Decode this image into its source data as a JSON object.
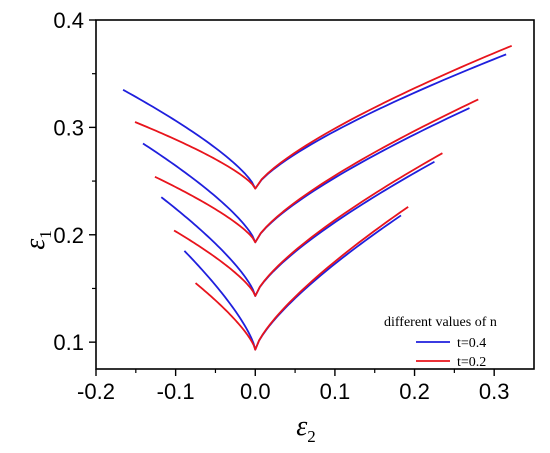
{
  "chart_data": {
    "type": "line",
    "xlabel": {
      "symbol": "ε",
      "subscript": "2"
    },
    "ylabel": {
      "symbol": "ε",
      "subscript": "1"
    },
    "xlim": [
      -0.2,
      0.35
    ],
    "ylim": [
      0.075,
      0.4
    ],
    "xticks": [
      -0.2,
      -0.1,
      0.0,
      0.1,
      0.2,
      0.3
    ],
    "xtick_labels": [
      "-0.2",
      "-0.1",
      "0.0",
      "0.1",
      "0.2",
      "0.3"
    ],
    "yticks": [
      0.1,
      0.2,
      0.3,
      0.4
    ],
    "ytick_labels": [
      "0.1",
      "0.2",
      "0.3",
      "0.4"
    ],
    "legend": {
      "title": "different values of n",
      "placement": "bottom-right",
      "entries": [
        {
          "label": "t=0.4",
          "color": "#1f1fdd"
        },
        {
          "label": "t=0.2",
          "color": "#e8141c"
        }
      ]
    },
    "series": [
      {
        "group": 1,
        "legend_entry": 0,
        "color": "#1f1fdd",
        "vertex": [
          0.0,
          0.243
        ],
        "left": [
          -0.166,
          0.335
        ],
        "right": [
          0.315,
          0.368
        ]
      },
      {
        "group": 1,
        "legend_entry": 1,
        "color": "#e8141c",
        "vertex": [
          0.0,
          0.243
        ],
        "left": [
          -0.151,
          0.305
        ],
        "right": [
          0.322,
          0.376
        ]
      },
      {
        "group": 2,
        "legend_entry": 0,
        "color": "#1f1fdd",
        "vertex": [
          0.0,
          0.193
        ],
        "left": [
          -0.141,
          0.285
        ],
        "right": [
          0.269,
          0.318
        ]
      },
      {
        "group": 2,
        "legend_entry": 1,
        "color": "#e8141c",
        "vertex": [
          0.0,
          0.193
        ],
        "left": [
          -0.126,
          0.254
        ],
        "right": [
          0.28,
          0.326
        ]
      },
      {
        "group": 3,
        "legend_entry": 0,
        "color": "#1f1fdd",
        "vertex": [
          0.0,
          0.143
        ],
        "left": [
          -0.118,
          0.235
        ],
        "right": [
          0.225,
          0.268
        ]
      },
      {
        "group": 3,
        "legend_entry": 1,
        "color": "#e8141c",
        "vertex": [
          0.0,
          0.143
        ],
        "left": [
          -0.102,
          0.204
        ],
        "right": [
          0.235,
          0.276
        ]
      },
      {
        "group": 4,
        "legend_entry": 0,
        "color": "#1f1fdd",
        "vertex": [
          0.0,
          0.093
        ],
        "left": [
          -0.089,
          0.185
        ],
        "right": [
          0.183,
          0.218
        ]
      },
      {
        "group": 4,
        "legend_entry": 1,
        "color": "#e8141c",
        "vertex": [
          0.0,
          0.093
        ],
        "left": [
          -0.075,
          0.155
        ],
        "right": [
          0.192,
          0.226
        ]
      }
    ],
    "grid": false
  }
}
